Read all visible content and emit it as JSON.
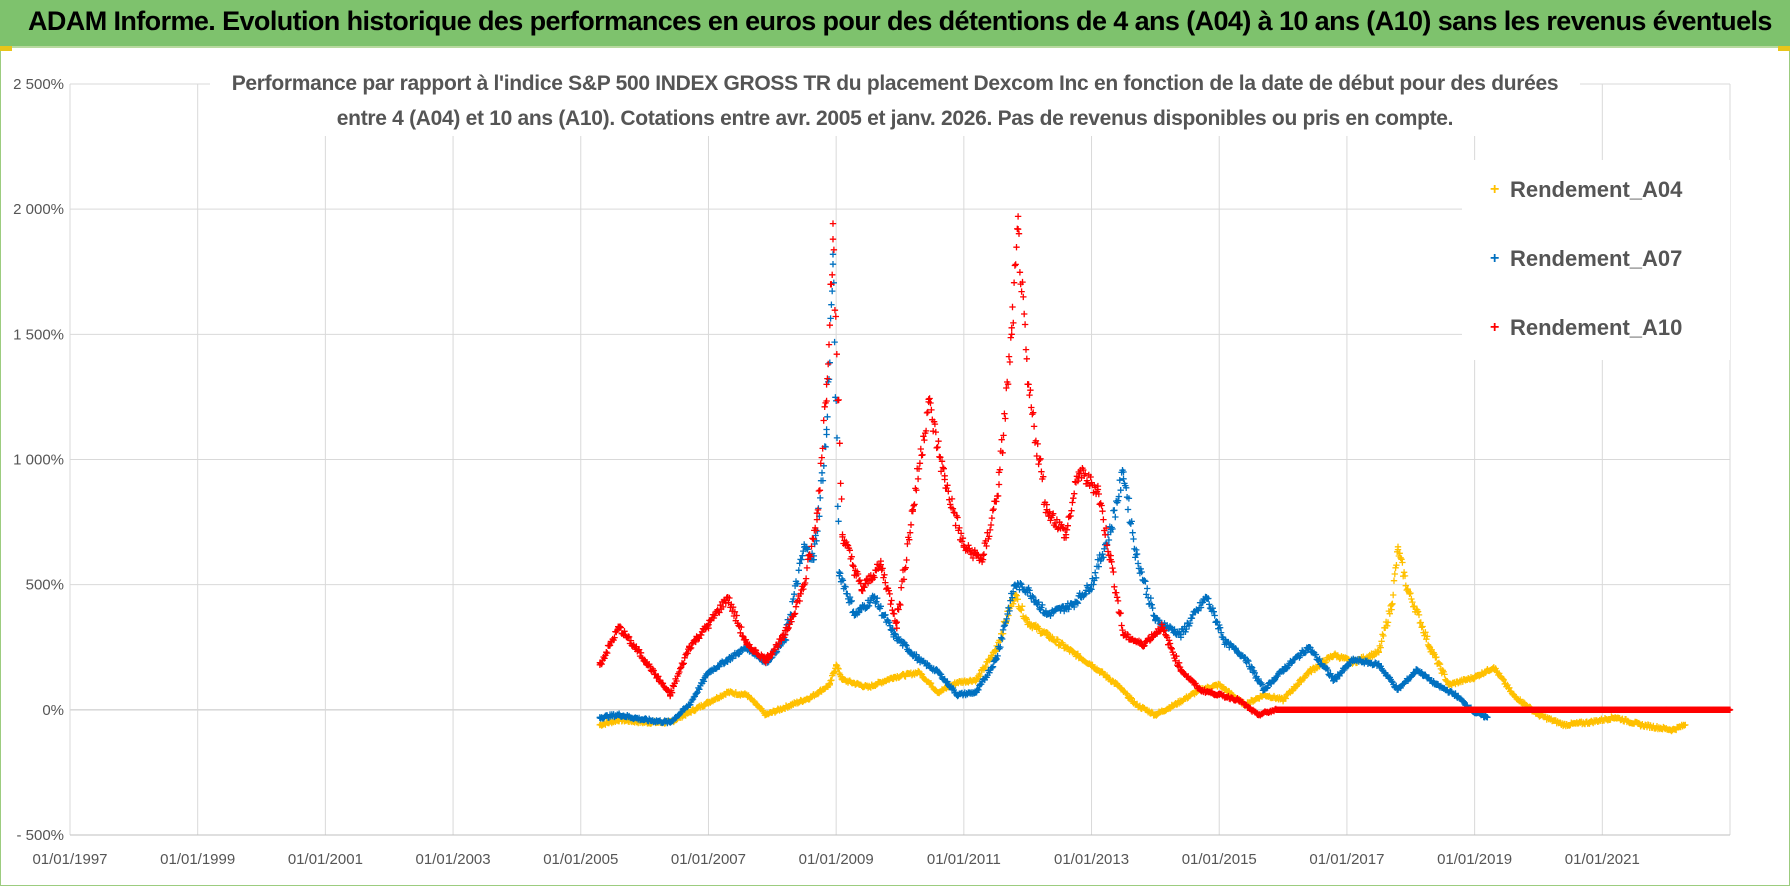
{
  "header": {
    "title": "ADAM Informe. Evolution historique des performances en euros pour des détentions de 4 ans (A04) à 10 ans (A10) sans les revenus éventuels"
  },
  "chart_data": {
    "type": "scatter",
    "title_line1": "Performance par rapport à l'indice S&P 500 INDEX GROSS TR  du placement Dexcom Inc en fonction de la date de début pour des durées",
    "title_line2": "entre 4 (A04) et 10 ans (A10). Cotations entre avr. 2005 et janv. 2026. Pas de revenus disponibles ou pris en compte.",
    "xlabel": "",
    "ylabel": "",
    "x_unit": "year",
    "xlim": [
      1997.0,
      2023.0
    ],
    "ylim": [
      -500,
      2500
    ],
    "x_tick_labels": [
      "01/01/1997",
      "01/01/1999",
      "01/01/2001",
      "01/01/2003",
      "01/01/2005",
      "01/01/2007",
      "01/01/2009",
      "01/01/2011",
      "01/01/2013",
      "01/01/2015",
      "01/01/2017",
      "01/01/2019",
      "01/01/2021"
    ],
    "x_tick_values": [
      1997,
      1999,
      2001,
      2003,
      2005,
      2007,
      2009,
      2011,
      2013,
      2015,
      2017,
      2019,
      2021
    ],
    "y_tick_labels": [
      "- 500%",
      "0%",
      "500%",
      "1 000%",
      "1 500%",
      "2 000%",
      "2 500%"
    ],
    "y_tick_values": [
      -500,
      0,
      500,
      1000,
      1500,
      2000,
      2500
    ],
    "grid": true,
    "legend_position": "top-right",
    "marker": "+",
    "series": [
      {
        "name": "Rendement_A04",
        "color": "#ffc000",
        "points": [
          [
            2005.3,
            -60
          ],
          [
            2005.6,
            -40
          ],
          [
            2006.0,
            -50
          ],
          [
            2006.4,
            -50
          ],
          [
            2006.7,
            -10
          ],
          [
            2007.0,
            30
          ],
          [
            2007.3,
            70
          ],
          [
            2007.6,
            60
          ],
          [
            2007.9,
            -20
          ],
          [
            2008.3,
            20
          ],
          [
            2008.6,
            50
          ],
          [
            2008.9,
            100
          ],
          [
            2009.0,
            180
          ],
          [
            2009.1,
            120
          ],
          [
            2009.5,
            90
          ],
          [
            2009.9,
            130
          ],
          [
            2010.3,
            150
          ],
          [
            2010.6,
            70
          ],
          [
            2010.9,
            110
          ],
          [
            2011.2,
            120
          ],
          [
            2011.5,
            240
          ],
          [
            2011.8,
            460
          ],
          [
            2012.0,
            350
          ],
          [
            2012.3,
            300
          ],
          [
            2012.7,
            230
          ],
          [
            2013.0,
            180
          ],
          [
            2013.4,
            100
          ],
          [
            2013.7,
            20
          ],
          [
            2014.0,
            -20
          ],
          [
            2014.3,
            20
          ],
          [
            2014.7,
            80
          ],
          [
            2015.0,
            100
          ],
          [
            2015.4,
            20
          ],
          [
            2015.7,
            60
          ],
          [
            2016.0,
            40
          ],
          [
            2016.4,
            150
          ],
          [
            2016.8,
            220
          ],
          [
            2017.1,
            190
          ],
          [
            2017.5,
            230
          ],
          [
            2017.7,
            420
          ],
          [
            2017.8,
            640
          ],
          [
            2017.95,
            480
          ],
          [
            2018.1,
            390
          ],
          [
            2018.3,
            250
          ],
          [
            2018.6,
            100
          ],
          [
            2019.0,
            130
          ],
          [
            2019.3,
            170
          ],
          [
            2019.6,
            60
          ],
          [
            2020.0,
            -20
          ],
          [
            2020.4,
            -60
          ],
          [
            2020.8,
            -50
          ],
          [
            2021.2,
            -30
          ],
          [
            2021.6,
            -60
          ],
          [
            2022.1,
            -80
          ],
          [
            2022.3,
            -60
          ]
        ]
      },
      {
        "name": "Rendement_A07",
        "color": "#0070c0",
        "points": [
          [
            2005.3,
            -30
          ],
          [
            2005.6,
            -20
          ],
          [
            2006.0,
            -40
          ],
          [
            2006.4,
            -50
          ],
          [
            2006.7,
            20
          ],
          [
            2007.0,
            150
          ],
          [
            2007.3,
            200
          ],
          [
            2007.6,
            250
          ],
          [
            2007.9,
            190
          ],
          [
            2008.2,
            280
          ],
          [
            2008.5,
            650
          ],
          [
            2008.65,
            600
          ],
          [
            2008.85,
            1100
          ],
          [
            2008.95,
            1780
          ],
          [
            2009.05,
            550
          ],
          [
            2009.3,
            380
          ],
          [
            2009.6,
            450
          ],
          [
            2009.9,
            300
          ],
          [
            2010.3,
            200
          ],
          [
            2010.6,
            150
          ],
          [
            2010.9,
            60
          ],
          [
            2011.2,
            70
          ],
          [
            2011.5,
            200
          ],
          [
            2011.8,
            500
          ],
          [
            2012.0,
            480
          ],
          [
            2012.3,
            380
          ],
          [
            2012.7,
            420
          ],
          [
            2013.0,
            500
          ],
          [
            2013.3,
            720
          ],
          [
            2013.5,
            950
          ],
          [
            2013.7,
            620
          ],
          [
            2014.0,
            360
          ],
          [
            2014.4,
            300
          ],
          [
            2014.8,
            450
          ],
          [
            2015.1,
            270
          ],
          [
            2015.4,
            210
          ],
          [
            2015.7,
            80
          ],
          [
            2016.0,
            160
          ],
          [
            2016.4,
            250
          ],
          [
            2016.8,
            120
          ],
          [
            2017.1,
            200
          ],
          [
            2017.5,
            180
          ],
          [
            2017.8,
            80
          ],
          [
            2018.1,
            160
          ],
          [
            2018.4,
            100
          ],
          [
            2018.7,
            60
          ],
          [
            2019.0,
            -10
          ],
          [
            2019.2,
            -30
          ]
        ]
      },
      {
        "name": "Rendement_A10",
        "color": "#ff0000",
        "points": [
          [
            2005.3,
            180
          ],
          [
            2005.6,
            330
          ],
          [
            2006.0,
            200
          ],
          [
            2006.4,
            60
          ],
          [
            2006.7,
            250
          ],
          [
            2007.0,
            340
          ],
          [
            2007.3,
            450
          ],
          [
            2007.6,
            260
          ],
          [
            2007.9,
            200
          ],
          [
            2008.2,
            300
          ],
          [
            2008.5,
            500
          ],
          [
            2008.7,
            760
          ],
          [
            2008.85,
            1300
          ],
          [
            2008.95,
            1880
          ],
          [
            2009.1,
            700
          ],
          [
            2009.4,
            480
          ],
          [
            2009.7,
            580
          ],
          [
            2009.95,
            350
          ],
          [
            2010.2,
            800
          ],
          [
            2010.45,
            1230
          ],
          [
            2010.7,
            920
          ],
          [
            2011.0,
            650
          ],
          [
            2011.3,
            600
          ],
          [
            2011.55,
            900
          ],
          [
            2011.75,
            1500
          ],
          [
            2011.85,
            1920
          ],
          [
            2012.0,
            1300
          ],
          [
            2012.3,
            800
          ],
          [
            2012.6,
            700
          ],
          [
            2012.8,
            950
          ],
          [
            2013.1,
            880
          ],
          [
            2013.3,
            600
          ],
          [
            2013.5,
            300
          ],
          [
            2013.8,
            260
          ],
          [
            2014.1,
            330
          ],
          [
            2014.4,
            160
          ],
          [
            2014.7,
            80
          ],
          [
            2015.0,
            60
          ],
          [
            2015.3,
            40
          ],
          [
            2015.6,
            -20
          ],
          [
            2015.9,
            0
          ],
          [
            2016.3,
            0
          ],
          [
            2017.0,
            0
          ],
          [
            2018.0,
            0
          ],
          [
            2019.0,
            0
          ],
          [
            2020.0,
            0
          ],
          [
            2021.0,
            0
          ],
          [
            2022.0,
            0
          ],
          [
            2023.0,
            0
          ]
        ]
      }
    ]
  }
}
